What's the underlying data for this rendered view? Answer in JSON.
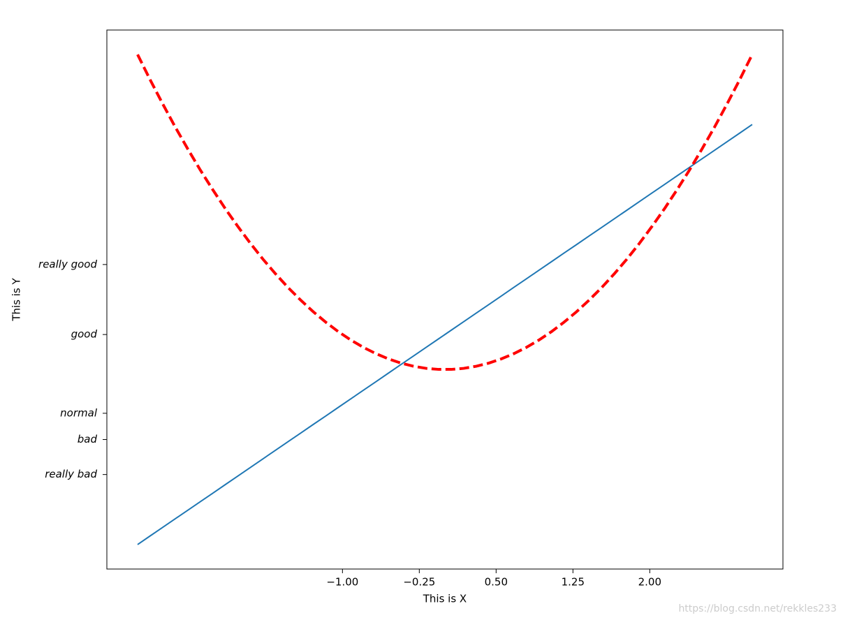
{
  "chart_data": {
    "type": "line",
    "xlabel": "This is X",
    "ylabel": "This is Y",
    "watermark": "https://blog.csdn.net/rekkles233",
    "x": [
      -3,
      -2.878,
      -2.755,
      -2.633,
      -2.51,
      -2.388,
      -2.265,
      -2.143,
      -2.02,
      -1.898,
      -1.776,
      -1.653,
      -1.531,
      -1.408,
      -1.286,
      -1.163,
      -1.041,
      -0.918,
      -0.796,
      -0.673,
      -0.551,
      -0.429,
      -0.306,
      -0.184,
      -0.061,
      0.061,
      0.184,
      0.306,
      0.429,
      0.551,
      0.673,
      0.796,
      0.918,
      1.041,
      1.163,
      1.286,
      1.408,
      1.531,
      1.653,
      1.776,
      1.898,
      2.02,
      2.143,
      2.265,
      2.388,
      2.51,
      2.633,
      2.755,
      2.878,
      3
    ],
    "series": [
      {
        "color": "#1f77b4",
        "linestyle": "solid",
        "linewidth": 2,
        "values": [
          -5,
          -4.755,
          -4.51,
          -4.265,
          -4.02,
          -3.776,
          -3.531,
          -3.286,
          -3.041,
          -2.796,
          -2.551,
          -2.306,
          -2.061,
          -1.816,
          -1.571,
          -1.327,
          -1.082,
          -0.837,
          -0.592,
          -0.347,
          -0.102,
          0.143,
          0.388,
          0.633,
          0.878,
          1.122,
          1.367,
          1.612,
          1.857,
          2.102,
          2.347,
          2.592,
          2.837,
          3.082,
          3.327,
          3.571,
          3.816,
          4.061,
          4.306,
          4.551,
          4.796,
          5.041,
          5.286,
          5.531,
          5.776,
          6.02,
          6.265,
          6.51,
          6.755,
          7
        ]
      },
      {
        "color": "#ff0000",
        "linestyle": "dashed",
        "linewidth": 4,
        "values": [
          9,
          8.281,
          7.591,
          6.931,
          6.301,
          5.701,
          5.132,
          4.592,
          4.082,
          3.602,
          3.152,
          2.733,
          2.343,
          1.983,
          1.653,
          1.353,
          1.083,
          0.843,
          0.633,
          0.454,
          0.304,
          0.184,
          0.094,
          0.034,
          0.004,
          0.004,
          0.034,
          0.094,
          0.184,
          0.304,
          0.454,
          0.633,
          0.843,
          1.083,
          1.353,
          1.653,
          1.983,
          2.343,
          2.733,
          3.152,
          3.602,
          4.082,
          4.592,
          5.132,
          5.701,
          6.301,
          6.931,
          7.591,
          8.281,
          9
        ]
      }
    ],
    "xlim": [
      -3.3,
      3.3
    ],
    "ylim": [
      -5.7,
      9.7
    ],
    "xticks": [
      {
        "value": -1,
        "label": "−1.00"
      },
      {
        "value": -0.25,
        "label": "−0.25"
      },
      {
        "value": 0.5,
        "label": "0.50"
      },
      {
        "value": 1.25,
        "label": "1.25"
      },
      {
        "value": 2,
        "label": "2.00"
      }
    ],
    "yticks": [
      {
        "value": -3,
        "label": "really bad"
      },
      {
        "value": -2,
        "label": "bad"
      },
      {
        "value": -1.25,
        "label": "normal"
      },
      {
        "value": 1,
        "label": "good"
      },
      {
        "value": 3,
        "label": "really good"
      }
    ],
    "grid": false
  }
}
